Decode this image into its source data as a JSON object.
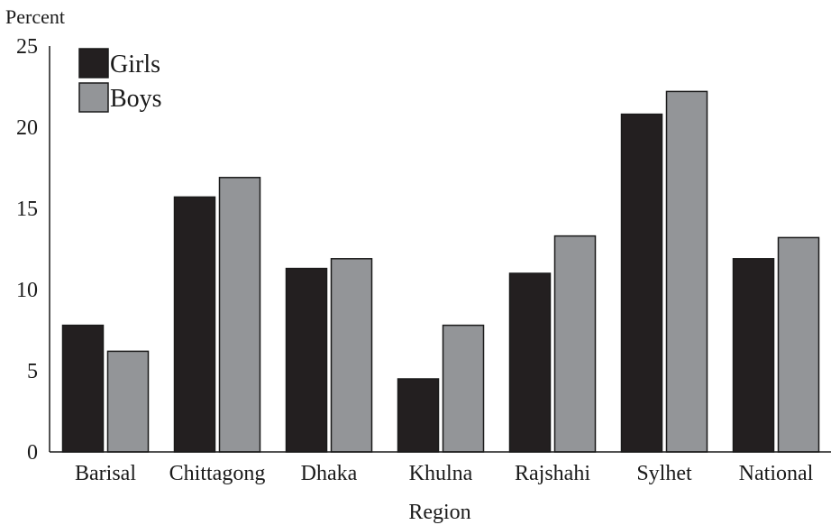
{
  "chart_data": {
    "type": "bar",
    "ylabel": "Percent",
    "xlabel": "Region",
    "ylim": [
      0,
      25
    ],
    "yticks": [
      "0",
      "5",
      "10",
      "15",
      "20",
      "25"
    ],
    "categories": [
      "Barisal",
      "Chittagong",
      "Dhaka",
      "Khulna",
      "Rajshahi",
      "Sylhet",
      "National"
    ],
    "series": [
      {
        "name": "Girls",
        "color": "#231f20",
        "values": [
          7.8,
          15.7,
          11.3,
          4.5,
          11.0,
          20.8,
          11.9
        ]
      },
      {
        "name": "Boys",
        "color": "#939598",
        "values": [
          6.2,
          16.9,
          11.9,
          7.8,
          13.3,
          22.2,
          13.2
        ]
      }
    ],
    "legend_position": "top-left",
    "grid": false
  }
}
